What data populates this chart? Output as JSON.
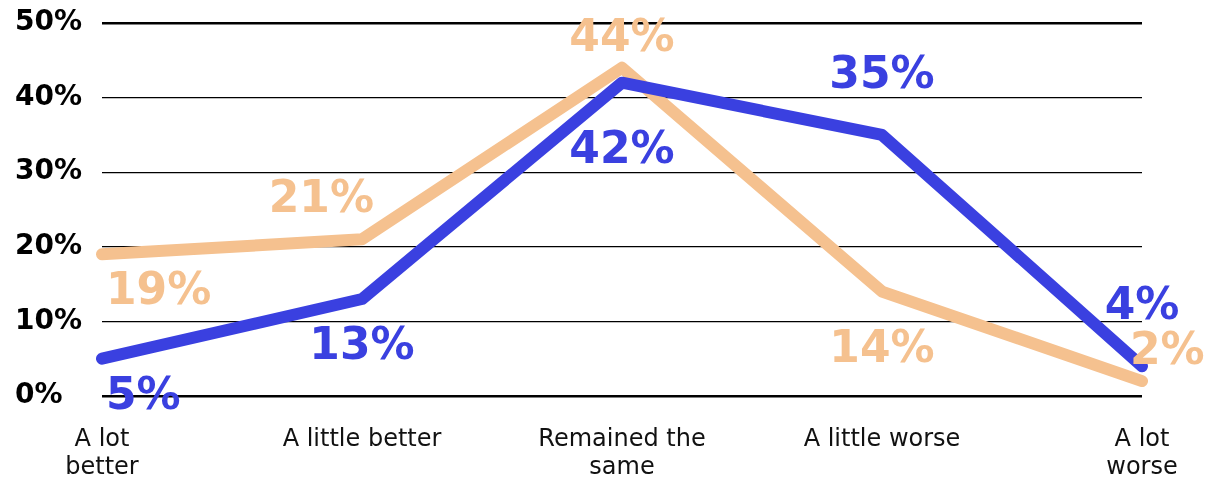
{
  "chart_data": {
    "type": "line",
    "categories": [
      "A lot better",
      "A little better",
      "Remained the same",
      "A little worse",
      "A lot worse"
    ],
    "series": [
      {
        "color": "#f5c18f",
        "values": [
          19,
          21,
          44,
          14,
          2
        ],
        "value_labels": [
          "19%",
          "21%",
          "44%",
          "14%",
          "2%"
        ]
      },
      {
        "color": "#3a40e0",
        "values": [
          5,
          13,
          42,
          35,
          4
        ],
        "value_labels": [
          "5%",
          "13%",
          "42%",
          "35%",
          "4%"
        ]
      }
    ],
    "ylim": [
      0,
      50
    ],
    "yticks": [
      {
        "value": 0,
        "label": "0%"
      },
      {
        "value": 10,
        "label": "10%"
      },
      {
        "value": 20,
        "label": "20%"
      },
      {
        "value": 30,
        "label": "30%"
      },
      {
        "value": 40,
        "label": "40%"
      },
      {
        "value": 50,
        "label": "50%"
      }
    ],
    "grid": "y"
  }
}
